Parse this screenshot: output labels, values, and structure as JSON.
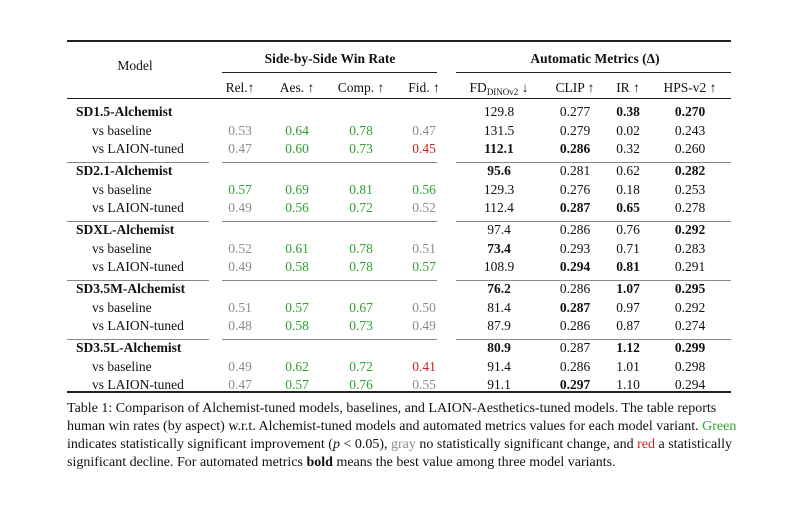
{
  "headers": {
    "model": "Model",
    "group_winrate": "Side-by-Side Win Rate",
    "group_auto": "Automatic Metrics (Δ)",
    "rel": "Rel.↑",
    "aes": "Aes. ↑",
    "comp": "Comp. ↑",
    "fid": "Fid. ↑",
    "fd_main": "FD",
    "fd_sub": "DINOv2",
    "fd_arrow": " ↓",
    "clip": "CLIP ↑",
    "ir": "IR ↑",
    "hps": "HPS-v2 ↑"
  },
  "colors": {
    "green": "#2ea32e",
    "gray": "#8c8c8c",
    "red": "#cc2222"
  },
  "groups": [
    {
      "title": "SD1.5-Alchemist",
      "main": {
        "fd": "129.8",
        "clip": "0.277",
        "ir": "0.38",
        "hps": "0.270",
        "bold": [
          "ir",
          "hps"
        ]
      },
      "rows": [
        {
          "label": "vs baseline",
          "rel": "0.53",
          "aes": "0.64",
          "comp": "0.78",
          "fid": "0.47",
          "color": {
            "rel": "gray",
            "aes": "green",
            "comp": "green",
            "fid": "gray"
          },
          "fd": "131.5",
          "clip": "0.279",
          "ir": "0.02",
          "hps": "0.243",
          "bold": []
        },
        {
          "label": "vs LAION-tuned",
          "rel": "0.47",
          "aes": "0.60",
          "comp": "0.73",
          "fid": "0.45",
          "color": {
            "rel": "gray",
            "aes": "green",
            "comp": "green",
            "fid": "red"
          },
          "fd": "112.1",
          "clip": "0.286",
          "ir": "0.32",
          "hps": "0.260",
          "bold": [
            "fd",
            "clip"
          ]
        }
      ]
    },
    {
      "title": "SD2.1-Alchemist",
      "main": {
        "fd": "95.6",
        "clip": "0.281",
        "ir": "0.62",
        "hps": "0.282",
        "bold": [
          "fd",
          "hps"
        ]
      },
      "rows": [
        {
          "label": "vs baseline",
          "rel": "0.57",
          "aes": "0.69",
          "comp": "0.81",
          "fid": "0.56",
          "color": {
            "rel": "green",
            "aes": "green",
            "comp": "green",
            "fid": "green"
          },
          "fd": "129.3",
          "clip": "0.276",
          "ir": "0.18",
          "hps": "0.253",
          "bold": []
        },
        {
          "label": "vs LAION-tuned",
          "rel": "0.49",
          "aes": "0.56",
          "comp": "0.72",
          "fid": "0.52",
          "color": {
            "rel": "gray",
            "aes": "green",
            "comp": "green",
            "fid": "gray"
          },
          "fd": "112.4",
          "clip": "0.287",
          "ir": "0.65",
          "hps": "0.278",
          "bold": [
            "clip",
            "ir"
          ]
        }
      ]
    },
    {
      "title": "SDXL-Alchemist",
      "main": {
        "fd": "97.4",
        "clip": "0.286",
        "ir": "0.76",
        "hps": "0.292",
        "bold": [
          "hps"
        ]
      },
      "rows": [
        {
          "label": "vs baseline",
          "rel": "0.52",
          "aes": "0.61",
          "comp": "0.78",
          "fid": "0.51",
          "color": {
            "rel": "gray",
            "aes": "green",
            "comp": "green",
            "fid": "gray"
          },
          "fd": "73.4",
          "clip": "0.293",
          "ir": "0.71",
          "hps": "0.283",
          "bold": [
            "fd"
          ]
        },
        {
          "label": "vs LAION-tuned",
          "rel": "0.49",
          "aes": "0.58",
          "comp": "0.78",
          "fid": "0.57",
          "color": {
            "rel": "gray",
            "aes": "green",
            "comp": "green",
            "fid": "green"
          },
          "fd": "108.9",
          "clip": "0.294",
          "ir": "0.81",
          "hps": "0.291",
          "bold": [
            "clip",
            "ir"
          ]
        }
      ]
    },
    {
      "title": "SD3.5M-Alchemist",
      "main": {
        "fd": "76.2",
        "clip": "0.286",
        "ir": "1.07",
        "hps": "0.295",
        "bold": [
          "fd",
          "ir",
          "hps"
        ]
      },
      "rows": [
        {
          "label": "vs baseline",
          "rel": "0.51",
          "aes": "0.57",
          "comp": "0.67",
          "fid": "0.50",
          "color": {
            "rel": "gray",
            "aes": "green",
            "comp": "green",
            "fid": "gray"
          },
          "fd": "81.4",
          "clip": "0.287",
          "ir": "0.97",
          "hps": "0.292",
          "bold": [
            "clip"
          ]
        },
        {
          "label": "vs LAION-tuned",
          "rel": "0.48",
          "aes": "0.58",
          "comp": "0.73",
          "fid": "0.49",
          "color": {
            "rel": "gray",
            "aes": "green",
            "comp": "green",
            "fid": "gray"
          },
          "fd": "87.9",
          "clip": "0.286",
          "ir": "0.87",
          "hps": "0.274",
          "bold": []
        }
      ]
    },
    {
      "title": "SD3.5L-Alchemist",
      "main": {
        "fd": "80.9",
        "clip": "0.287",
        "ir": "1.12",
        "hps": "0.299",
        "bold": [
          "fd",
          "ir",
          "hps"
        ]
      },
      "rows": [
        {
          "label": "vs baseline",
          "rel": "0.49",
          "aes": "0.62",
          "comp": "0.72",
          "fid": "0.41",
          "color": {
            "rel": "gray",
            "aes": "green",
            "comp": "green",
            "fid": "red"
          },
          "fd": "91.4",
          "clip": "0.286",
          "ir": "1.01",
          "hps": "0.298",
          "bold": []
        },
        {
          "label": "vs LAION-tuned",
          "rel": "0.47",
          "aes": "0.57",
          "comp": "0.76",
          "fid": "0.55",
          "color": {
            "rel": "gray",
            "aes": "green",
            "comp": "green",
            "fid": "gray"
          },
          "fd": "91.1",
          "clip": "0.297",
          "ir": "1.10",
          "hps": "0.294",
          "bold": [
            "clip"
          ]
        }
      ]
    }
  ],
  "caption": {
    "p1": "Table 1: Comparison of Alchemist-tuned models, baselines, and LAION-Aesthetics-tuned models. The table reports human win rates (by aspect) w.r.t. Alchemist-tuned models and automated metrics values for each model variant. ",
    "green_word": "Green",
    "p2": " indicates statistically significant improvement (",
    "p_italic": "p",
    "p3": " < 0.05), ",
    "gray_word": "gray",
    "p4": " no statistically significant change, and ",
    "red_word": "red",
    "p5": " a statistically significant decline. For automated metrics ",
    "bold_word": "bold",
    "p6": " means the best value among three model variants."
  }
}
